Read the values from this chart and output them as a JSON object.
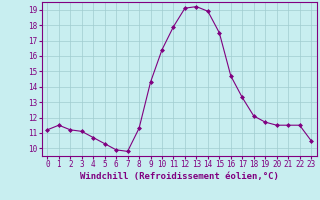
{
  "x": [
    0,
    1,
    2,
    3,
    4,
    5,
    6,
    7,
    8,
    9,
    10,
    11,
    12,
    13,
    14,
    15,
    16,
    17,
    18,
    19,
    20,
    21,
    22,
    23
  ],
  "y": [
    11.2,
    11.5,
    11.2,
    11.1,
    10.7,
    10.3,
    9.9,
    9.8,
    11.3,
    14.3,
    16.4,
    17.9,
    19.1,
    19.2,
    18.9,
    17.5,
    14.7,
    13.3,
    12.1,
    11.7,
    11.5,
    11.5,
    11.5,
    10.5
  ],
  "line_color": "#800080",
  "marker": "D",
  "marker_size": 2,
  "bg_color": "#c8eef0",
  "grid_color": "#a0ccd0",
  "xlabel": "Windchill (Refroidissement éolien,°C)",
  "xlim": [
    -0.5,
    23.5
  ],
  "ylim": [
    9.5,
    19.5
  ],
  "yticks": [
    10,
    11,
    12,
    13,
    14,
    15,
    16,
    17,
    18,
    19
  ],
  "xticks": [
    0,
    1,
    2,
    3,
    4,
    5,
    6,
    7,
    8,
    9,
    10,
    11,
    12,
    13,
    14,
    15,
    16,
    17,
    18,
    19,
    20,
    21,
    22,
    23
  ],
  "tick_color": "#800080",
  "label_color": "#800080",
  "spine_color": "#800080",
  "tick_fontsize": 5.5,
  "xlabel_fontsize": 6.5
}
